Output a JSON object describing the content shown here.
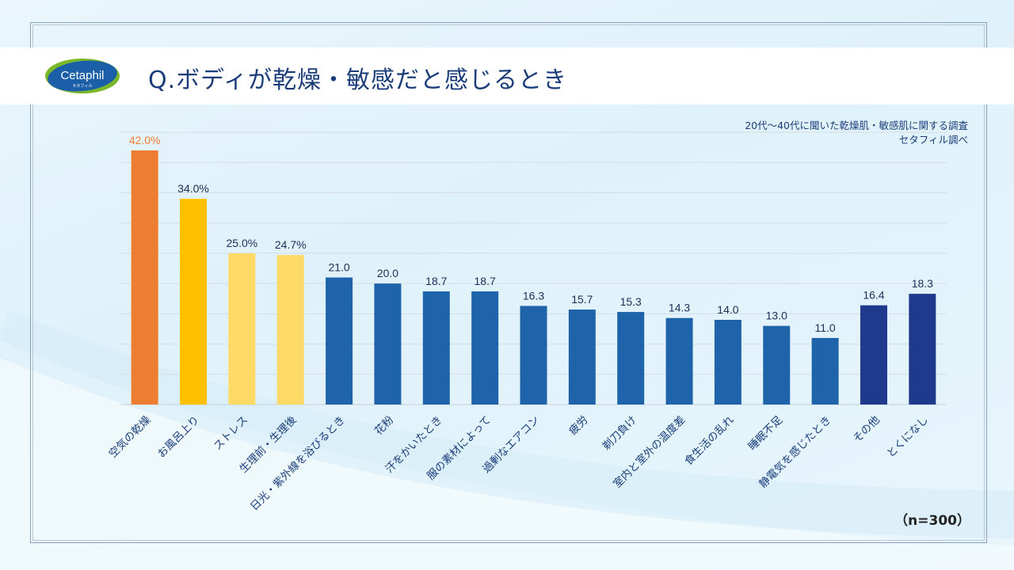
{
  "header": {
    "logo_text": "Cetaphil",
    "logo_subtext": "セタフィル",
    "title": "Q.ボディが乾燥・敏感だと感じるとき"
  },
  "source": {
    "line1": "20代～40代に聞いた乾燥肌・敏感肌に関する調査",
    "line2": "セタフィル調べ"
  },
  "sample_note": "（n=300）",
  "colors": {
    "orange": "#ED7D31",
    "yellow": "#FFC000",
    "light_yellow": "#FFD966",
    "blue": "#1F64AA",
    "navy": "#1F3A8C"
  },
  "chart_data": {
    "type": "bar",
    "title": "Q.ボディが乾燥・敏感だと感じるとき",
    "xlabel": "",
    "ylabel": "",
    "ylim": [
      0,
      45
    ],
    "grid": true,
    "grid_step": 5,
    "categories": [
      "空気の乾燥",
      "お風呂上り",
      "ストレス",
      "生理前・生理後",
      "日光・紫外線を浴びるとき",
      "花粉",
      "汗をかいたとき",
      "服の素材によって",
      "過剰なエアコン",
      "疲労",
      "剃刀負け",
      "室内と室外の温度差",
      "食生活の乱れ",
      "睡眠不足",
      "静電気を感じたとき",
      "その他",
      "とくになし"
    ],
    "values": [
      42.0,
      34.0,
      25.0,
      24.7,
      21.0,
      20.0,
      18.7,
      18.7,
      16.3,
      15.7,
      15.3,
      14.3,
      14.0,
      13.0,
      11.0,
      16.4,
      18.3
    ],
    "data_labels": [
      "42.0%",
      "34.0%",
      "25.0%",
      "24.7%",
      "21.0",
      "20.0",
      "18.7",
      "18.7",
      "16.3",
      "15.7",
      "15.3",
      "14.3",
      "14.0",
      "13.0",
      "11.0",
      "16.4",
      "18.3"
    ],
    "bar_colors": [
      "orange",
      "yellow",
      "light_yellow",
      "light_yellow",
      "blue",
      "blue",
      "blue",
      "blue",
      "blue",
      "blue",
      "blue",
      "blue",
      "blue",
      "blue",
      "blue",
      "navy",
      "navy"
    ]
  }
}
